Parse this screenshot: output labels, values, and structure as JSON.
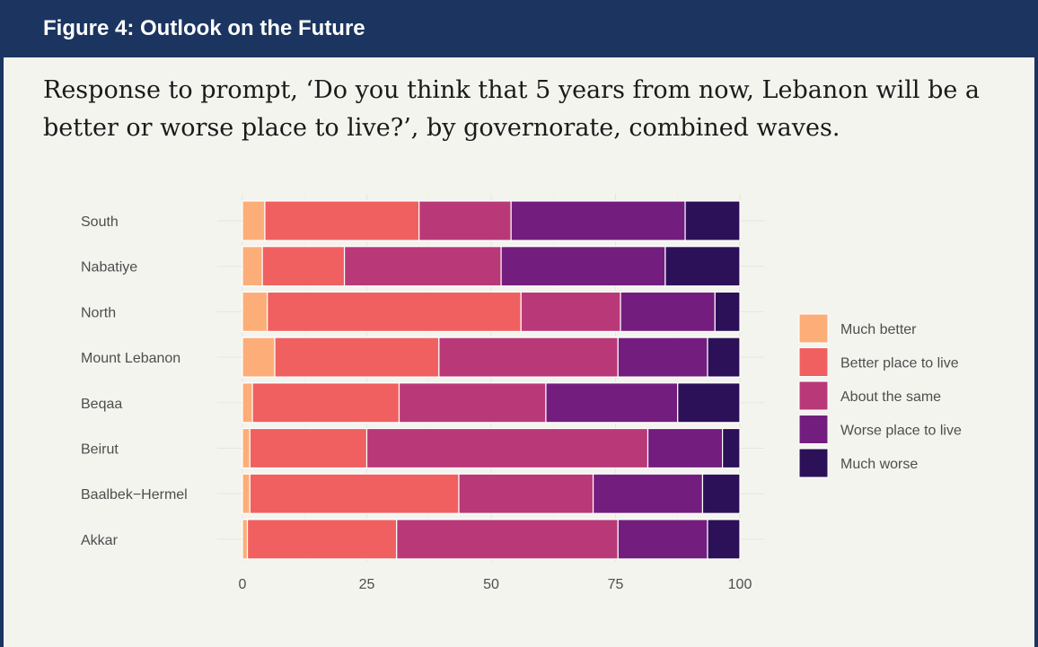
{
  "figure": {
    "title": "Figure 4: Outlook on the Future",
    "caption": "Response to prompt, ‘Do you think that 5 years from now, Lebanon will be a better or worse place to live?’, by governorate, combined waves."
  },
  "chart_data": {
    "type": "bar",
    "orientation": "horizontal",
    "stacked": true,
    "title": "",
    "xlabel": "",
    "ylabel": "",
    "xlim": [
      0,
      100
    ],
    "x_ticks": [
      0,
      25,
      50,
      75,
      100
    ],
    "grid": true,
    "legend_position": "right",
    "categories": [
      "South",
      "Nabatiye",
      "North",
      "Mount Lebanon",
      "Beqaa",
      "Beirut",
      "Baalbek−Hermel",
      "Akkar"
    ],
    "series": [
      {
        "name": "Much better",
        "color": "#fdae78",
        "values": [
          4.5,
          4.0,
          5.0,
          6.5,
          2.0,
          1.5,
          1.5,
          1.0
        ]
      },
      {
        "name": "Better place to live",
        "color": "#f06060",
        "values": [
          31.0,
          16.5,
          51.0,
          33.0,
          29.5,
          23.5,
          42.0,
          30.0
        ]
      },
      {
        "name": "About the same",
        "color": "#b93978",
        "values": [
          18.5,
          31.5,
          20.0,
          36.0,
          29.5,
          56.5,
          27.0,
          44.5
        ]
      },
      {
        "name": "Worse place to live",
        "color": "#731e7e",
        "values": [
          35.0,
          33.0,
          19.0,
          18.0,
          26.5,
          15.0,
          22.0,
          18.0
        ]
      },
      {
        "name": "Much worse",
        "color": "#2c1158",
        "values": [
          11.0,
          15.0,
          5.0,
          6.5,
          12.5,
          3.5,
          7.5,
          6.5
        ]
      }
    ]
  }
}
